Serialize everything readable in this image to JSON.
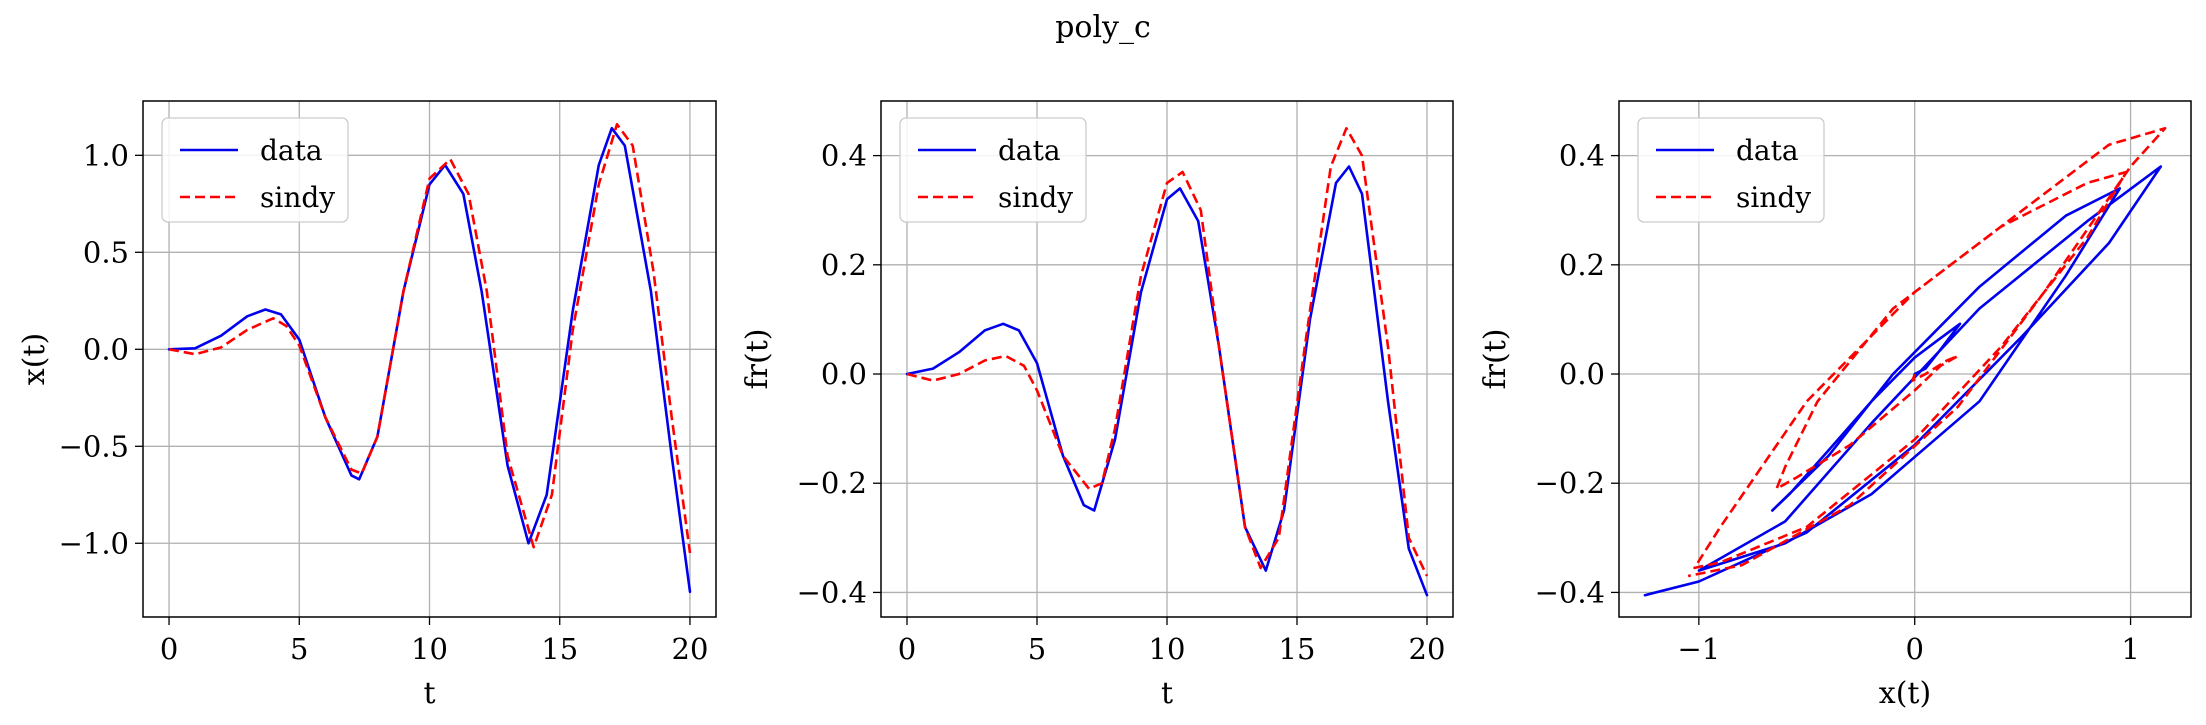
{
  "figure": {
    "title": "poly_c"
  },
  "legend": {
    "entries": [
      "data",
      "sindy"
    ]
  },
  "colors": {
    "data": "#0000ee",
    "sindy": "#ff0000",
    "grid": "#b0b0b0"
  },
  "chart_data": [
    {
      "type": "line",
      "xlabel": "t",
      "ylabel": "x(t)",
      "xlim": [
        -1,
        21
      ],
      "ylim": [
        -1.38,
        1.28
      ],
      "xticks": [
        0,
        5,
        10,
        15,
        20
      ],
      "yticks": [
        -1.0,
        -0.5,
        0.0,
        0.5,
        1.0
      ],
      "grid": true,
      "legend_position": "upper-left",
      "series": [
        {
          "name": "data",
          "style": "solid",
          "points": [
            [
              0,
              0
            ],
            [
              1,
              0.005
            ],
            [
              2,
              0.07
            ],
            [
              3,
              0.17
            ],
            [
              3.7,
              0.205
            ],
            [
              4.3,
              0.18
            ],
            [
              5,
              0.05
            ],
            [
              6,
              -0.35
            ],
            [
              7,
              -0.65
            ],
            [
              7.3,
              -0.67
            ],
            [
              8,
              -0.45
            ],
            [
              9,
              0.3
            ],
            [
              10,
              0.85
            ],
            [
              10.6,
              0.95
            ],
            [
              11.3,
              0.8
            ],
            [
              12,
              0.3
            ],
            [
              13,
              -0.6
            ],
            [
              13.8,
              -1.0
            ],
            [
              14.5,
              -0.75
            ],
            [
              15.5,
              0.2
            ],
            [
              16.5,
              0.95
            ],
            [
              17,
              1.14
            ],
            [
              17.5,
              1.05
            ],
            [
              18.5,
              0.3
            ],
            [
              19.3,
              -0.55
            ],
            [
              20,
              -1.25
            ]
          ]
        },
        {
          "name": "sindy",
          "style": "dashed",
          "points": [
            [
              0,
              0
            ],
            [
              1,
              -0.025
            ],
            [
              2,
              0.01
            ],
            [
              3,
              0.1
            ],
            [
              4,
              0.16
            ],
            [
              4.5,
              0.12
            ],
            [
              5,
              0.02
            ],
            [
              6,
              -0.35
            ],
            [
              7,
              -0.62
            ],
            [
              7.4,
              -0.64
            ],
            [
              8,
              -0.45
            ],
            [
              9,
              0.3
            ],
            [
              10,
              0.88
            ],
            [
              10.8,
              0.98
            ],
            [
              11.5,
              0.8
            ],
            [
              12.2,
              0.3
            ],
            [
              13,
              -0.55
            ],
            [
              14,
              -1.02
            ],
            [
              14.7,
              -0.75
            ],
            [
              15.5,
              0.1
            ],
            [
              16.5,
              0.85
            ],
            [
              17.2,
              1.16
            ],
            [
              17.8,
              1.05
            ],
            [
              18.6,
              0.4
            ],
            [
              19.3,
              -0.35
            ],
            [
              20,
              -1.05
            ]
          ]
        }
      ]
    },
    {
      "type": "line",
      "xlabel": "t",
      "ylabel": "fr(t)",
      "xlim": [
        -1,
        21
      ],
      "ylim": [
        -0.445,
        0.5
      ],
      "xticks": [
        0,
        5,
        10,
        15,
        20
      ],
      "yticks": [
        -0.4,
        -0.2,
        0.0,
        0.2,
        0.4
      ],
      "grid": true,
      "legend_position": "upper-left",
      "series": [
        {
          "name": "data",
          "style": "solid",
          "points": [
            [
              0,
              0
            ],
            [
              1,
              0.01
            ],
            [
              2,
              0.04
            ],
            [
              3,
              0.08
            ],
            [
              3.7,
              0.092
            ],
            [
              4.3,
              0.08
            ],
            [
              5,
              0.02
            ],
            [
              6,
              -0.15
            ],
            [
              6.8,
              -0.24
            ],
            [
              7.2,
              -0.25
            ],
            [
              8,
              -0.12
            ],
            [
              9,
              0.15
            ],
            [
              10,
              0.32
            ],
            [
              10.5,
              0.34
            ],
            [
              11.2,
              0.28
            ],
            [
              12,
              0.05
            ],
            [
              13,
              -0.28
            ],
            [
              13.8,
              -0.36
            ],
            [
              14.5,
              -0.25
            ],
            [
              15.5,
              0.1
            ],
            [
              16.5,
              0.35
            ],
            [
              17,
              0.38
            ],
            [
              17.5,
              0.33
            ],
            [
              18.5,
              -0.05
            ],
            [
              19.3,
              -0.32
            ],
            [
              20,
              -0.405
            ]
          ]
        },
        {
          "name": "sindy",
          "style": "dashed",
          "points": [
            [
              0,
              0
            ],
            [
              1,
              -0.012
            ],
            [
              2,
              0.0
            ],
            [
              3,
              0.025
            ],
            [
              3.8,
              0.033
            ],
            [
              4.5,
              0.015
            ],
            [
              5,
              -0.03
            ],
            [
              6,
              -0.15
            ],
            [
              7,
              -0.21
            ],
            [
              7.5,
              -0.2
            ],
            [
              8,
              -0.1
            ],
            [
              9,
              0.18
            ],
            [
              10,
              0.35
            ],
            [
              10.6,
              0.37
            ],
            [
              11.3,
              0.3
            ],
            [
              12,
              0.05
            ],
            [
              13,
              -0.28
            ],
            [
              13.6,
              -0.355
            ],
            [
              14.3,
              -0.3
            ],
            [
              15.3,
              0.05
            ],
            [
              16.3,
              0.38
            ],
            [
              16.9,
              0.45
            ],
            [
              17.5,
              0.4
            ],
            [
              18.5,
              0.05
            ],
            [
              19.3,
              -0.3
            ],
            [
              20,
              -0.37
            ]
          ]
        }
      ]
    },
    {
      "type": "line",
      "xlabel": "x(t)",
      "ylabel": "fr(t)",
      "xlim": [
        -1.37,
        1.28
      ],
      "ylim": [
        -0.445,
        0.5
      ],
      "xticks": [
        -1,
        0,
        1
      ],
      "yticks": [
        -0.4,
        -0.2,
        0.0,
        0.2,
        0.4
      ],
      "grid": true,
      "legend_position": "upper-left",
      "series": [
        {
          "name": "data",
          "style": "solid",
          "points": [
            [
              0,
              0
            ],
            [
              0.05,
              0.01
            ],
            [
              0.12,
              0.045
            ],
            [
              0.21,
              0.092
            ],
            [
              0.1,
              0.06
            ],
            [
              0,
              0.03
            ],
            [
              -0.2,
              -0.05
            ],
            [
              -0.4,
              -0.14
            ],
            [
              -0.58,
              -0.22
            ],
            [
              -0.66,
              -0.25
            ],
            [
              -0.4,
              -0.15
            ],
            [
              -0.1,
              0.0
            ],
            [
              0.3,
              0.16
            ],
            [
              0.7,
              0.29
            ],
            [
              0.95,
              0.34
            ],
            [
              0.7,
              0.18
            ],
            [
              0.3,
              -0.05
            ],
            [
              -0.2,
              -0.22
            ],
            [
              -0.6,
              -0.31
            ],
            [
              -1.0,
              -0.36
            ],
            [
              -0.6,
              -0.27
            ],
            [
              -0.2,
              -0.09
            ],
            [
              0.3,
              0.12
            ],
            [
              0.8,
              0.28
            ],
            [
              1.14,
              0.38
            ],
            [
              0.9,
              0.24
            ],
            [
              0.5,
              0.07
            ],
            [
              0,
              -0.13
            ],
            [
              -0.5,
              -0.29
            ],
            [
              -1.0,
              -0.38
            ],
            [
              -1.25,
              -0.405
            ]
          ]
        },
        {
          "name": "sindy",
          "style": "dashed",
          "points": [
            [
              0,
              0
            ],
            [
              -0.01,
              -0.012
            ],
            [
              0.05,
              0.0
            ],
            [
              0.15,
              0.025
            ],
            [
              0.2,
              0.033
            ],
            [
              0.12,
              0.015
            ],
            [
              0,
              -0.03
            ],
            [
              -0.3,
              -0.13
            ],
            [
              -0.55,
              -0.19
            ],
            [
              -0.64,
              -0.21
            ],
            [
              -0.6,
              -0.17
            ],
            [
              -0.45,
              -0.05
            ],
            [
              -0.1,
              0.12
            ],
            [
              0.4,
              0.27
            ],
            [
              0.8,
              0.35
            ],
            [
              0.98,
              0.37
            ],
            [
              0.8,
              0.25
            ],
            [
              0.4,
              0.05
            ],
            [
              0,
              -0.12
            ],
            [
              -0.5,
              -0.28
            ],
            [
              -0.9,
              -0.345
            ],
            [
              -1.02,
              -0.355
            ],
            [
              -0.9,
              -0.28
            ],
            [
              -0.5,
              -0.05
            ],
            [
              0,
              0.15
            ],
            [
              0.5,
              0.3
            ],
            [
              0.9,
              0.42
            ],
            [
              1.16,
              0.45
            ],
            [
              1.0,
              0.38
            ],
            [
              0.6,
              0.15
            ],
            [
              0.2,
              -0.06
            ],
            [
              -0.3,
              -0.24
            ],
            [
              -0.8,
              -0.35
            ],
            [
              -1.05,
              -0.37
            ]
          ]
        }
      ]
    }
  ]
}
